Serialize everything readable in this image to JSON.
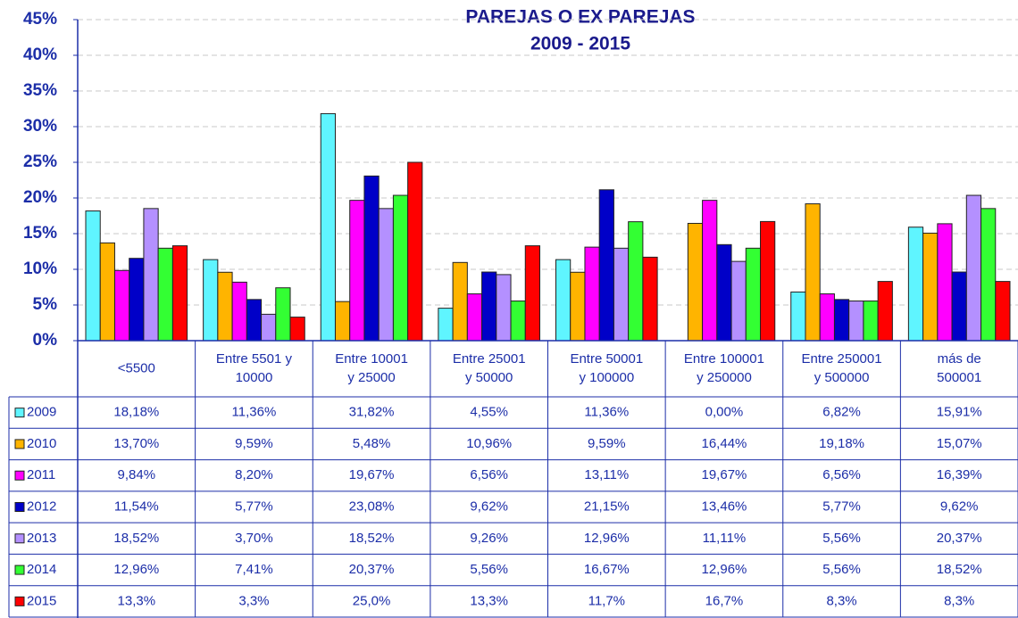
{
  "chart_data": {
    "type": "bar",
    "title": [
      "PAREJAS O EX PAREJAS",
      "2009 - 2015"
    ],
    "categories": [
      [
        "<5500"
      ],
      [
        "Entre 5501 y",
        "10000"
      ],
      [
        "Entre 10001",
        "y 25000"
      ],
      [
        "Entre 25001",
        "y 50000"
      ],
      [
        "Entre 50001",
        "y 100000"
      ],
      [
        "Entre 100001",
        "y 250000"
      ],
      [
        "Entre 250001",
        "y 500000"
      ],
      [
        "más de",
        "500001"
      ]
    ],
    "series": [
      {
        "name": "2009",
        "color": "#5ff5ff",
        "values": [
          18.18,
          11.36,
          31.82,
          4.55,
          11.36,
          0,
          6.82,
          15.91
        ],
        "value_labels": [
          "18,18%",
          "11,36%",
          "31,82%",
          "4,55%",
          "11,36%",
          "0,00%",
          "6,82%",
          "15,91%"
        ]
      },
      {
        "name": "2010",
        "color": "#ffb400",
        "values": [
          13.7,
          9.59,
          5.48,
          10.96,
          9.59,
          16.44,
          19.18,
          15.07
        ],
        "value_labels": [
          "13,70%",
          "9,59%",
          "5,48%",
          "10,96%",
          "9,59%",
          "16,44%",
          "19,18%",
          "15,07%"
        ]
      },
      {
        "name": "2011",
        "color": "#ff00ff",
        "values": [
          9.84,
          8.2,
          19.67,
          6.56,
          13.11,
          19.67,
          6.56,
          16.39
        ],
        "value_labels": [
          "9,84%",
          "8,20%",
          "19,67%",
          "6,56%",
          "13,11%",
          "19,67%",
          "6,56%",
          "16,39%"
        ]
      },
      {
        "name": "2012",
        "color": "#0000c8",
        "values": [
          11.54,
          5.77,
          23.08,
          9.62,
          21.15,
          13.46,
          5.77,
          9.62
        ],
        "value_labels": [
          "11,54%",
          "5,77%",
          "23,08%",
          "9,62%",
          "21,15%",
          "13,46%",
          "5,77%",
          "9,62%"
        ]
      },
      {
        "name": "2013",
        "color": "#b490ff",
        "values": [
          18.52,
          3.7,
          18.52,
          9.26,
          12.96,
          11.11,
          5.56,
          20.37
        ],
        "value_labels": [
          "18,52%",
          "3,70%",
          "18,52%",
          "9,26%",
          "12,96%",
          "11,11%",
          "5,56%",
          "20,37%"
        ]
      },
      {
        "name": "2014",
        "color": "#33ff33",
        "values": [
          12.96,
          7.41,
          20.37,
          5.56,
          16.67,
          12.96,
          5.56,
          18.52
        ],
        "value_labels": [
          "12,96%",
          "7,41%",
          "20,37%",
          "5,56%",
          "16,67%",
          "12,96%",
          "5,56%",
          "18,52%"
        ]
      },
      {
        "name": "2015",
        "color": "#ff0000",
        "values": [
          13.3,
          3.3,
          25.0,
          13.3,
          11.7,
          16.7,
          8.3,
          8.3
        ],
        "value_labels": [
          "13,3%",
          "3,3%",
          "25,0%",
          "13,3%",
          "11,7%",
          "16,7%",
          "8,3%",
          "8,3%"
        ]
      }
    ],
    "ylim": [
      0,
      45
    ],
    "yticks": [
      {
        "value": 0,
        "label": "0%"
      },
      {
        "value": 5,
        "label": "5%"
      },
      {
        "value": 10,
        "label": "10%"
      },
      {
        "value": 15,
        "label": "15%"
      },
      {
        "value": 20,
        "label": "20%"
      },
      {
        "value": 25,
        "label": "25%"
      },
      {
        "value": 30,
        "label": "30%"
      },
      {
        "value": 35,
        "label": "35%"
      },
      {
        "value": 40,
        "label": "40%"
      },
      {
        "value": 45,
        "label": "45%"
      }
    ],
    "grid": true
  }
}
